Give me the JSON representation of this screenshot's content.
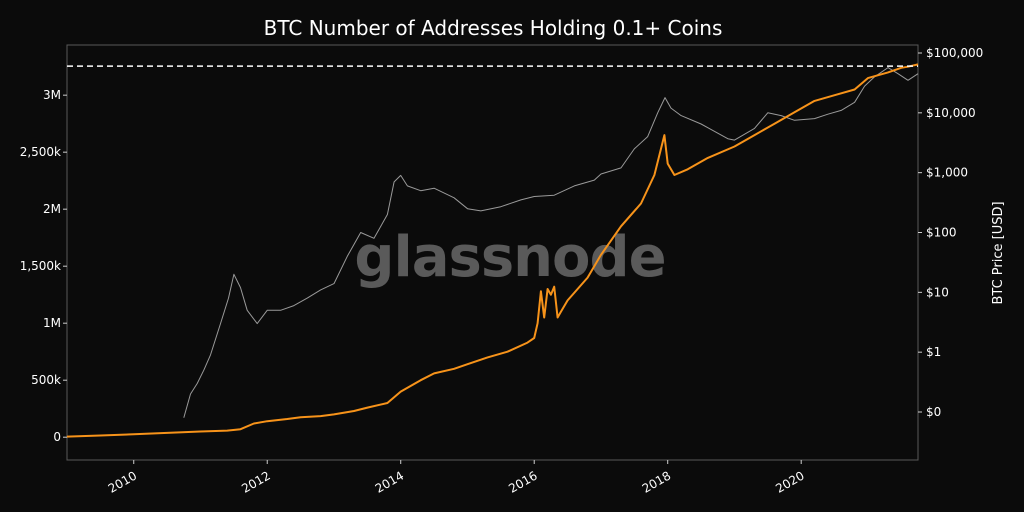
{
  "chart_data": {
    "type": "line",
    "title": "BTC Number of Addresses Holding 0.1+ Coins",
    "watermark": "glassnode",
    "xlabel": "",
    "ylabel_left": "",
    "ylabel_right": "BTC Price [USD]",
    "x_range": [
      2009.0,
      2021.75
    ],
    "x_ticks": [
      2010,
      2012,
      2014,
      2016,
      2018,
      2020
    ],
    "left_axis": {
      "range": [
        -200000,
        3440000
      ],
      "ticks": [
        0,
        500000,
        1000000,
        1500000,
        2000000,
        2500000,
        3000000
      ],
      "tick_labels": [
        "0",
        "500k",
        "1M",
        "1,500k",
        "2M",
        "2,500k",
        "3M"
      ]
    },
    "right_axis": {
      "scale": "log",
      "ticks": [
        0.1,
        1,
        10,
        100,
        1000,
        10000,
        100000
      ],
      "tick_labels": [
        "$0",
        "$1",
        "$10",
        "$100",
        "$1,000",
        "$10,000",
        "$100,000"
      ]
    },
    "reference_line": {
      "value": 3255000,
      "style": "dashed",
      "color": "#ffffff"
    },
    "series": [
      {
        "color": "#f7931a",
        "axis": "left",
        "x": [
          2009.0,
          2009.5,
          2010.0,
          2010.5,
          2011.0,
          2011.4,
          2011.6,
          2011.8,
          2012.0,
          2012.3,
          2012.5,
          2012.8,
          2013.0,
          2013.3,
          2013.5,
          2013.8,
          2014.0,
          2014.3,
          2014.5,
          2014.8,
          2015.0,
          2015.3,
          2015.6,
          2015.9,
          2016.0,
          2016.05,
          2016.1,
          2016.15,
          2016.2,
          2016.25,
          2016.3,
          2016.35,
          2016.4,
          2016.5,
          2016.8,
          2017.0,
          2017.3,
          2017.6,
          2017.8,
          2017.95,
          2018.0,
          2018.05,
          2018.1,
          2018.3,
          2018.6,
          2019.0,
          2019.3,
          2019.6,
          2019.9,
          2020.2,
          2020.5,
          2020.8,
          2021.0,
          2021.3,
          2021.5,
          2021.6,
          2021.75
        ],
        "values": [
          5000,
          15000,
          25000,
          38000,
          50000,
          58000,
          70000,
          120000,
          140000,
          160000,
          175000,
          185000,
          200000,
          230000,
          260000,
          300000,
          400000,
          500000,
          560000,
          600000,
          640000,
          700000,
          750000,
          830000,
          870000,
          1000000,
          1280000,
          1050000,
          1300000,
          1250000,
          1320000,
          1050000,
          1100000,
          1200000,
          1400000,
          1600000,
          1850000,
          2050000,
          2300000,
          2650000,
          2400000,
          2350000,
          2300000,
          2350000,
          2450000,
          2550000,
          2650000,
          2750000,
          2850000,
          2950000,
          3000000,
          3050000,
          3150000,
          3200000,
          3240000,
          3250000,
          3270000
        ]
      },
      {
        "color": "#9a9a9a",
        "axis": "right",
        "x": [
          2010.75,
          2010.85,
          2010.95,
          2011.05,
          2011.15,
          2011.3,
          2011.42,
          2011.5,
          2011.6,
          2011.7,
          2011.85,
          2012.0,
          2012.2,
          2012.4,
          2012.6,
          2012.8,
          2013.0,
          2013.2,
          2013.4,
          2013.6,
          2013.8,
          2013.9,
          2014.0,
          2014.1,
          2014.3,
          2014.5,
          2014.8,
          2015.0,
          2015.2,
          2015.5,
          2015.8,
          2016.0,
          2016.3,
          2016.6,
          2016.9,
          2017.0,
          2017.3,
          2017.5,
          2017.7,
          2017.85,
          2017.96,
          2018.05,
          2018.2,
          2018.5,
          2018.9,
          2019.0,
          2019.3,
          2019.5,
          2019.7,
          2019.9,
          2020.2,
          2020.4,
          2020.6,
          2020.8,
          2020.95,
          2021.1,
          2021.3,
          2021.45,
          2021.6,
          2021.75
        ],
        "values": [
          0.08,
          0.2,
          0.3,
          0.5,
          0.9,
          3,
          8,
          20,
          12,
          5,
          3,
          5,
          5,
          6,
          8,
          11,
          14,
          40,
          100,
          80,
          200,
          700,
          900,
          600,
          500,
          550,
          380,
          250,
          230,
          270,
          350,
          400,
          420,
          600,
          750,
          950,
          1200,
          2500,
          4000,
          10000,
          18000,
          12000,
          9000,
          6500,
          3700,
          3500,
          5500,
          10000,
          9000,
          7500,
          8000,
          9500,
          11000,
          15000,
          28000,
          40000,
          57000,
          45000,
          35000,
          45000
        ]
      }
    ]
  }
}
